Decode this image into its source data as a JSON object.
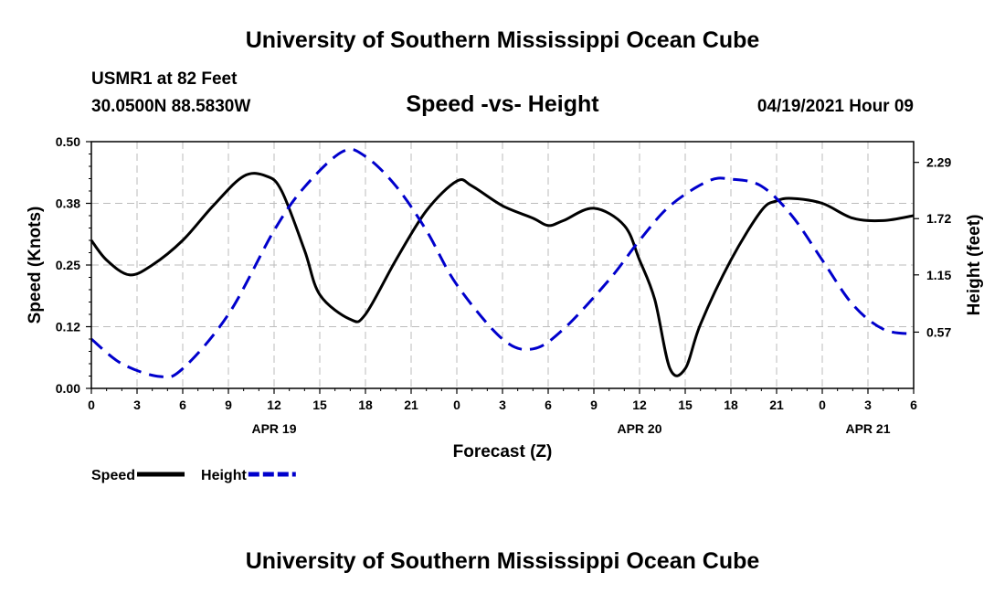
{
  "header": {
    "title_top": "University of Southern Mississippi Ocean Cube",
    "station": "USMR1 at 82 Feet",
    "coords": "30.0500N  88.5830W",
    "subtitle": "Speed -vs- Height",
    "datestamp": "04/19/2021 Hour 09",
    "title_bottom": "University of Southern Mississippi Ocean Cube"
  },
  "chart_data": {
    "type": "line",
    "title": "Speed -vs- Height",
    "xlabel": "Forecast (Z)",
    "ylabel_left": "Speed (Knots)",
    "ylabel_right": "Height (feet)",
    "x_range_hours": [
      0,
      54
    ],
    "x_tick_hours": [
      0,
      3,
      6,
      9,
      12,
      15,
      18,
      21,
      24,
      27,
      30,
      33,
      36,
      39,
      42,
      45,
      48,
      51,
      54
    ],
    "x_tick_labels": [
      "0",
      "3",
      "6",
      "9",
      "12",
      "15",
      "18",
      "21",
      "0",
      "3",
      "6",
      "9",
      "12",
      "15",
      "18",
      "21",
      "0",
      "3",
      "6"
    ],
    "date_labels": [
      {
        "hour": 12,
        "label": "APR 19"
      },
      {
        "hour": 36,
        "label": "APR 20"
      },
      {
        "hour": 51,
        "label": "APR 21"
      }
    ],
    "y_left_range": [
      0,
      0.5
    ],
    "y_left_ticks": [
      0.0,
      0.125,
      0.25,
      0.375,
      0.5
    ],
    "y_left_tick_labels": [
      "0.00",
      "0.12",
      "0.25",
      "0.38",
      "0.50"
    ],
    "y_right_range": [
      0,
      2.5
    ],
    "y_right_ticks": [
      0.57,
      1.15,
      1.72,
      2.29
    ],
    "y_right_tick_labels": [
      "0.57",
      "1.15",
      "1.72",
      "2.29"
    ],
    "grid": true,
    "series": [
      {
        "name": "Speed",
        "axis": "left",
        "color": "#000000",
        "dash": "solid",
        "x": [
          0,
          1,
          2.5,
          4,
          6,
          8,
          10,
          11.5,
          12.5,
          14,
          15,
          17,
          18,
          20,
          22,
          24,
          25,
          27,
          29,
          30,
          31,
          33,
          35,
          36,
          37,
          38,
          39,
          40,
          42,
          44,
          45,
          46,
          48,
          50,
          52,
          54
        ],
        "values": [
          0.3,
          0.26,
          0.23,
          0.25,
          0.3,
          0.37,
          0.43,
          0.43,
          0.4,
          0.28,
          0.19,
          0.14,
          0.15,
          0.26,
          0.36,
          0.42,
          0.41,
          0.37,
          0.345,
          0.33,
          0.34,
          0.365,
          0.33,
          0.26,
          0.18,
          0.04,
          0.04,
          0.13,
          0.26,
          0.36,
          0.38,
          0.385,
          0.375,
          0.345,
          0.34,
          0.35
        ]
      },
      {
        "name": "Height",
        "axis": "right",
        "color": "#0000cc",
        "dash": "dashed",
        "x": [
          0,
          2,
          4.5,
          6,
          9,
          12,
          14,
          16.5,
          18,
          20,
          22,
          24,
          27,
          29,
          31,
          34,
          36,
          38,
          40.5,
          42,
          44,
          46,
          48,
          50,
          52,
          54
        ],
        "values": [
          0.5,
          0.25,
          0.12,
          0.2,
          0.75,
          1.6,
          2.04,
          2.4,
          2.35,
          2.05,
          1.6,
          1.05,
          0.5,
          0.4,
          0.6,
          1.1,
          1.5,
          1.85,
          2.1,
          2.12,
          2.05,
          1.75,
          1.3,
          0.85,
          0.6,
          0.55
        ]
      }
    ],
    "legend": {
      "placement": "bottom-left",
      "entries": [
        "Speed",
        "Height"
      ]
    }
  }
}
